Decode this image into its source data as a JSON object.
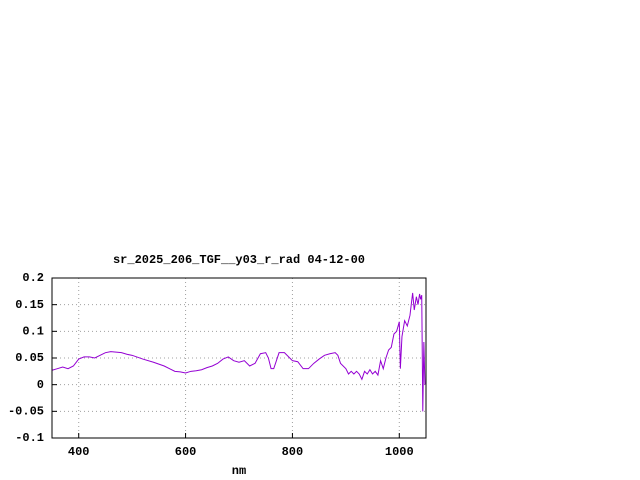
{
  "chart_data": {
    "type": "line",
    "title": "sr_2025_206_TGF__y03_r_rad 04-12-00",
    "x_label": "nm",
    "xlim": [
      350,
      1050
    ],
    "ylim": [
      -0.1,
      0.2
    ],
    "xticks": [
      400,
      600,
      800,
      1000
    ],
    "yticks": [
      -0.1,
      -0.05,
      0,
      0.05,
      0.1,
      0.15,
      0.2
    ],
    "grid": true,
    "x": [
      350,
      360,
      370,
      380,
      390,
      400,
      410,
      420,
      430,
      440,
      450,
      460,
      470,
      480,
      490,
      500,
      520,
      540,
      560,
      570,
      580,
      590,
      600,
      610,
      620,
      630,
      640,
      650,
      660,
      670,
      680,
      690,
      700,
      710,
      720,
      730,
      740,
      750,
      755,
      760,
      765,
      770,
      775,
      785,
      795,
      800,
      810,
      820,
      830,
      840,
      850,
      860,
      870,
      880,
      885,
      890,
      900,
      905,
      910,
      915,
      920,
      925,
      930,
      935,
      940,
      945,
      950,
      955,
      960,
      965,
      970,
      975,
      980,
      985,
      990,
      995,
      1000,
      1002,
      1005,
      1010,
      1015,
      1020,
      1025,
      1028,
      1032,
      1035,
      1038,
      1040,
      1042,
      1044,
      1046,
      1048
    ],
    "series": [
      {
        "color": "#9400d3",
        "values": [
          0.027,
          0.03,
          0.033,
          0.03,
          0.035,
          0.048,
          0.052,
          0.052,
          0.05,
          0.055,
          0.06,
          0.062,
          0.061,
          0.06,
          0.057,
          0.055,
          0.048,
          0.042,
          0.035,
          0.03,
          0.025,
          0.024,
          0.022,
          0.025,
          0.026,
          0.028,
          0.032,
          0.035,
          0.04,
          0.048,
          0.052,
          0.045,
          0.042,
          0.045,
          0.035,
          0.04,
          0.058,
          0.06,
          0.05,
          0.03,
          0.03,
          0.045,
          0.06,
          0.06,
          0.05,
          0.045,
          0.043,
          0.03,
          0.03,
          0.04,
          0.048,
          0.055,
          0.058,
          0.06,
          0.055,
          0.04,
          0.03,
          0.02,
          0.025,
          0.02,
          0.025,
          0.02,
          0.01,
          0.025,
          0.02,
          0.028,
          0.02,
          0.025,
          0.018,
          0.045,
          0.03,
          0.05,
          0.065,
          0.07,
          0.095,
          0.1,
          0.118,
          0.03,
          0.09,
          0.12,
          0.11,
          0.13,
          0.172,
          0.14,
          0.165,
          0.15,
          0.17,
          0.16,
          0.168,
          -0.05,
          0.08,
          0.0
        ]
      }
    ]
  }
}
